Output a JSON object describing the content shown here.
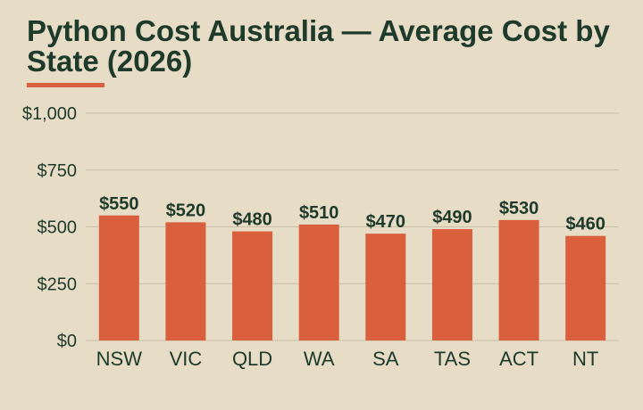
{
  "chart_data": {
    "type": "bar",
    "title": "Python Cost Australia — Average Cost by State (2026)",
    "categories": [
      "NSW",
      "VIC",
      "QLD",
      "WA",
      "SA",
      "TAS",
      "ACT",
      "NT"
    ],
    "values": [
      550,
      520,
      480,
      510,
      470,
      490,
      530,
      460
    ],
    "data_labels": [
      "$550",
      "$520",
      "$480",
      "$510",
      "$470",
      "$490",
      "$530",
      "$460"
    ],
    "ylim": [
      0,
      1000
    ],
    "yticks": [
      0,
      250,
      500,
      750,
      1000
    ],
    "ytick_labels": [
      "$0",
      "$250",
      "$500",
      "$750",
      "$1,000"
    ],
    "xlabel": "",
    "ylabel": "",
    "grid": true,
    "colors": {
      "bar": "#d95f3d",
      "text": "#1e3a2a",
      "grid": "#c9bea8",
      "background": "#e7dcc5"
    }
  }
}
